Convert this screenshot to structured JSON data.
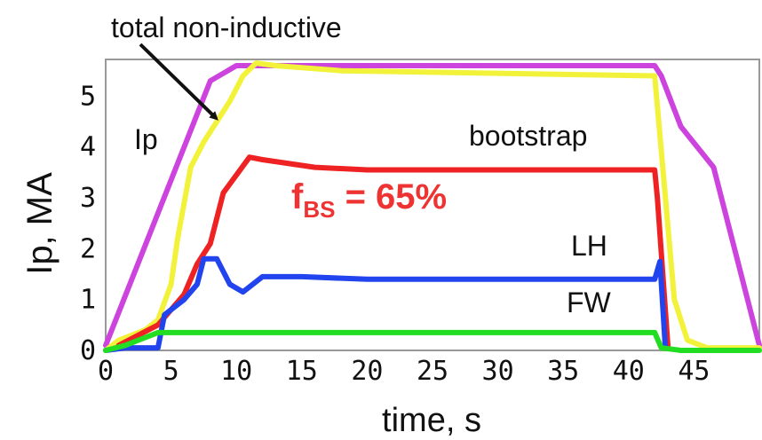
{
  "chart_data": {
    "type": "line",
    "xlabel": "time, s",
    "ylabel": "Ip, MA",
    "xlim": [
      0,
      50
    ],
    "ylim": [
      0,
      5.6
    ],
    "x_ticks": [
      0,
      5,
      10,
      15,
      20,
      25,
      30,
      35,
      40,
      45
    ],
    "y_ticks": [
      0,
      1,
      2,
      3,
      4,
      5
    ],
    "grid": false,
    "series": [
      {
        "name": "Ip",
        "color": "#cc44dd",
        "points": [
          [
            0,
            0.1
          ],
          [
            8,
            5.3
          ],
          [
            10,
            5.6
          ],
          [
            42,
            5.6
          ],
          [
            42.5,
            5.4
          ],
          [
            44,
            4.4
          ],
          [
            46.5,
            3.6
          ],
          [
            50,
            0.1
          ]
        ]
      },
      {
        "name": "total non-inductive",
        "color": "#f2f23a",
        "points": [
          [
            0,
            0
          ],
          [
            1,
            0.2
          ],
          [
            3,
            0.4
          ],
          [
            4,
            0.6
          ],
          [
            5,
            1.3
          ],
          [
            5.5,
            2.2
          ],
          [
            6.5,
            3.6
          ],
          [
            7.5,
            4.1
          ],
          [
            8.5,
            4.5
          ],
          [
            9.5,
            4.9
          ],
          [
            10.5,
            5.4
          ],
          [
            11.5,
            5.65
          ],
          [
            13,
            5.6
          ],
          [
            18,
            5.5
          ],
          [
            30,
            5.45
          ],
          [
            42,
            5.4
          ],
          [
            43.5,
            1.0
          ],
          [
            44.5,
            0.2
          ],
          [
            46,
            0.05
          ],
          [
            50,
            0.05
          ]
        ]
      },
      {
        "name": "bootstrap",
        "color": "#ee2222",
        "points": [
          [
            1,
            0.1
          ],
          [
            4,
            0.5
          ],
          [
            6,
            1.1
          ],
          [
            7,
            1.7
          ],
          [
            8,
            2.1
          ],
          [
            9,
            3.1
          ],
          [
            11,
            3.8
          ],
          [
            12,
            3.75
          ],
          [
            16,
            3.6
          ],
          [
            20,
            3.55
          ],
          [
            42,
            3.55
          ],
          [
            42.2,
            3.0
          ],
          [
            43,
            0.1
          ]
        ]
      },
      {
        "name": "LH",
        "color": "#2244ee",
        "points": [
          [
            0,
            0
          ],
          [
            1.5,
            0.05
          ],
          [
            4,
            0.05
          ],
          [
            4.5,
            0.7
          ],
          [
            6,
            1.0
          ],
          [
            7,
            1.3
          ],
          [
            7.5,
            1.8
          ],
          [
            8.5,
            1.8
          ],
          [
            9.5,
            1.3
          ],
          [
            10.5,
            1.15
          ],
          [
            12,
            1.45
          ],
          [
            15,
            1.45
          ],
          [
            20,
            1.4
          ],
          [
            42,
            1.4
          ],
          [
            42.4,
            1.75
          ],
          [
            42.8,
            0.1
          ]
        ]
      },
      {
        "name": "FW",
        "color": "#22dd22",
        "points": [
          [
            0,
            0
          ],
          [
            1.5,
            0.1
          ],
          [
            2.5,
            0.2
          ],
          [
            4,
            0.35
          ],
          [
            42,
            0.35
          ],
          [
            42.5,
            0.05
          ],
          [
            44,
            0
          ],
          [
            50,
            0
          ]
        ]
      }
    ],
    "annotations": {
      "total_label": "total non-inductive",
      "ip_label": "Ip",
      "bootstrap_label": "bootstrap",
      "lh_label": "LH",
      "fw_label": "FW",
      "fbs_main": "f",
      "fbs_sub": "BS",
      "fbs_value": " = 65%"
    }
  }
}
